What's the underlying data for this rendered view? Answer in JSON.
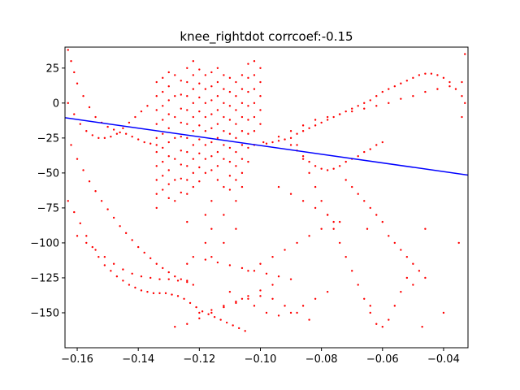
{
  "chart_data": {
    "type": "scatter",
    "title": "knee_rightdot corrcoef:-0.15",
    "xlabel": "",
    "ylabel": "",
    "xlim": [
      -0.164,
      -0.032
    ],
    "ylim": [
      -175,
      40
    ],
    "x_ticks": [
      -0.16,
      -0.14,
      -0.12,
      -0.1,
      -0.08,
      -0.06,
      -0.04
    ],
    "x_tick_labels": [
      "−0.16",
      "−0.14",
      "−0.12",
      "−0.10",
      "−0.08",
      "−0.06",
      "−0.04"
    ],
    "y_ticks": [
      25,
      0,
      -25,
      -50,
      -75,
      -100,
      -125,
      -150
    ],
    "y_tick_labels": [
      "25",
      "0",
      "−25",
      "−50",
      "−75",
      "−100",
      "−125",
      "−150"
    ],
    "grid": false,
    "colors": {
      "points": "#ff0000",
      "fit_line": "#0000ff"
    },
    "fit_line": {
      "x": [
        -0.164,
        -0.032
      ],
      "y": [
        -10.5,
        -51.5
      ]
    },
    "series": [
      {
        "x": [
          -0.163,
          -0.162,
          -0.161,
          -0.16,
          -0.158,
          -0.156,
          -0.154,
          -0.152,
          -0.15,
          -0.148,
          -0.146,
          -0.144,
          -0.142,
          -0.14,
          -0.138,
          -0.136,
          -0.134,
          -0.163,
          -0.161,
          -0.159,
          -0.157,
          -0.155,
          -0.153,
          -0.151,
          -0.149,
          -0.147,
          -0.145,
          -0.143,
          -0.141,
          -0.139,
          -0.137,
          -0.135,
          -0.133,
          -0.131,
          -0.129,
          -0.127,
          -0.125,
          -0.123,
          -0.121,
          -0.119,
          -0.117,
          -0.115,
          -0.113,
          -0.111,
          -0.109,
          -0.107,
          -0.105,
          -0.162,
          -0.16,
          -0.158,
          -0.156,
          -0.154,
          -0.152,
          -0.15,
          -0.148,
          -0.146,
          -0.144,
          -0.142,
          -0.14,
          -0.138,
          -0.136,
          -0.134,
          -0.132,
          -0.13,
          -0.128,
          -0.126,
          -0.124,
          -0.122,
          -0.16,
          -0.157,
          -0.154,
          -0.151,
          -0.148,
          -0.145,
          -0.142,
          -0.139,
          -0.136,
          -0.133,
          -0.13,
          -0.127,
          -0.124,
          -0.163,
          -0.161,
          -0.159,
          -0.157,
          -0.155,
          -0.153,
          -0.151,
          -0.149,
          -0.147,
          -0.145,
          -0.143,
          -0.141,
          -0.139,
          -0.137,
          -0.134,
          -0.134,
          -0.134,
          -0.134,
          -0.134,
          -0.134,
          -0.134,
          -0.134,
          -0.134,
          -0.134,
          -0.132,
          -0.132,
          -0.132,
          -0.132,
          -0.132,
          -0.132,
          -0.132,
          -0.132,
          -0.132,
          -0.13,
          -0.13,
          -0.13,
          -0.13,
          -0.13,
          -0.13,
          -0.13,
          -0.13,
          -0.13,
          -0.13,
          -0.128,
          -0.128,
          -0.128,
          -0.128,
          -0.128,
          -0.128,
          -0.128,
          -0.126,
          -0.126,
          -0.126,
          -0.126,
          -0.126,
          -0.126,
          -0.126,
          -0.126,
          -0.126,
          -0.124,
          -0.124,
          -0.124,
          -0.124,
          -0.124,
          -0.124,
          -0.124,
          -0.124,
          -0.124,
          -0.124,
          -0.124,
          -0.124,
          -0.122,
          -0.122,
          -0.122,
          -0.122,
          -0.122,
          -0.122,
          -0.122,
          -0.122,
          -0.122,
          -0.122,
          -0.12,
          -0.12,
          -0.12,
          -0.12,
          -0.12,
          -0.12,
          -0.12,
          -0.12,
          -0.12,
          -0.118,
          -0.118,
          -0.118,
          -0.118,
          -0.118,
          -0.118,
          -0.118,
          -0.118,
          -0.118,
          -0.118,
          -0.116,
          -0.116,
          -0.116,
          -0.116,
          -0.116,
          -0.116,
          -0.116,
          -0.116,
          -0.116,
          -0.116,
          -0.116,
          -0.114,
          -0.114,
          -0.114,
          -0.114,
          -0.114,
          -0.114,
          -0.114,
          -0.114,
          -0.114,
          -0.112,
          -0.112,
          -0.112,
          -0.112,
          -0.112,
          -0.112,
          -0.112,
          -0.112,
          -0.112,
          -0.112,
          -0.11,
          -0.11,
          -0.11,
          -0.11,
          -0.11,
          -0.11,
          -0.11,
          -0.11,
          -0.11,
          -0.108,
          -0.108,
          -0.108,
          -0.108,
          -0.108,
          -0.108,
          -0.108,
          -0.108,
          -0.108,
          -0.108,
          -0.106,
          -0.106,
          -0.106,
          -0.106,
          -0.106,
          -0.106,
          -0.106,
          -0.106,
          -0.106,
          -0.104,
          -0.104,
          -0.104,
          -0.104,
          -0.104,
          -0.104,
          -0.104,
          -0.104,
          -0.102,
          -0.102,
          -0.102,
          -0.102,
          -0.102,
          -0.102,
          -0.102,
          -0.1,
          -0.1,
          -0.1,
          -0.1,
          -0.1,
          -0.099,
          -0.098,
          -0.096,
          -0.094,
          -0.092,
          -0.09,
          -0.088,
          -0.086,
          -0.084,
          -0.082,
          -0.08,
          -0.078,
          -0.076,
          -0.074,
          -0.072,
          -0.07,
          -0.068,
          -0.066,
          -0.064,
          -0.062,
          -0.06,
          -0.058,
          -0.056,
          -0.054,
          -0.052,
          -0.05,
          -0.048,
          -0.046,
          -0.044,
          -0.042,
          -0.04,
          -0.038,
          -0.036,
          -0.034,
          -0.033,
          -0.094,
          -0.09,
          -0.086,
          -0.082,
          -0.078,
          -0.074,
          -0.07,
          -0.066,
          -0.062,
          -0.058,
          -0.054,
          -0.05,
          -0.046,
          -0.042,
          -0.038,
          -0.034,
          -0.088,
          -0.086,
          -0.084,
          -0.082,
          -0.08,
          -0.078,
          -0.076,
          -0.074,
          -0.072,
          -0.07,
          -0.068,
          -0.066,
          -0.064,
          -0.062,
          -0.06,
          -0.058,
          -0.056,
          -0.054,
          -0.052,
          -0.09,
          -0.088,
          -0.086,
          -0.084,
          -0.082,
          -0.08,
          -0.078,
          -0.076,
          -0.074,
          -0.072,
          -0.07,
          -0.068,
          -0.066,
          -0.064,
          -0.062,
          -0.06,
          -0.104,
          -0.1,
          -0.096,
          -0.092,
          -0.088,
          -0.084,
          -0.08,
          -0.076,
          -0.11,
          -0.106,
          -0.102,
          -0.098,
          -0.094,
          -0.09,
          -0.086,
          -0.082,
          -0.078,
          -0.12,
          -0.116,
          -0.112,
          -0.108,
          -0.104,
          -0.1,
          -0.096,
          -0.092,
          -0.088,
          -0.084,
          -0.128,
          -0.124,
          -0.12,
          -0.116,
          -0.112,
          -0.108,
          -0.104,
          -0.1,
          -0.096,
          -0.122,
          -0.118,
          -0.114,
          -0.11,
          -0.106,
          -0.102,
          -0.098,
          -0.094,
          -0.09,
          -0.094,
          -0.09,
          -0.086,
          -0.082,
          -0.078,
          -0.074,
          -0.072,
          -0.07,
          -0.068,
          -0.066,
          -0.064,
          -0.062,
          -0.06,
          -0.058,
          -0.056,
          -0.054,
          -0.052,
          -0.05,
          -0.048,
          -0.046,
          -0.065,
          -0.05,
          -0.047,
          -0.034,
          -0.033,
          -0.064,
          -0.046,
          -0.04,
          -0.035
        ],
        "y": [
          38,
          30,
          22,
          14,
          5,
          -3,
          -10,
          -14,
          -17,
          -19,
          -21,
          -22,
          -24,
          -26,
          -28,
          -29,
          -30,
          -70,
          -78,
          -86,
          -95,
          -103,
          -110,
          -116,
          -120,
          -124,
          -127,
          -130,
          -132,
          -134,
          -135,
          -136,
          -136,
          -136,
          -137,
          -138,
          -140,
          -143,
          -146,
          -149,
          -151,
          -153,
          -155,
          -157,
          -159,
          -161,
          -163,
          -30,
          -40,
          -48,
          -56,
          -63,
          -70,
          -76,
          -82,
          -88,
          -93,
          -98,
          -103,
          -107,
          -111,
          -115,
          -118,
          -121,
          -124,
          -126,
          -128,
          -130,
          -95,
          -100,
          -105,
          -110,
          -115,
          -119,
          -122,
          -124,
          -125,
          -126,
          -126,
          -127,
          -127,
          0,
          -8,
          -15,
          -20,
          -23,
          -25,
          -25,
          -24,
          -22,
          -18,
          -14,
          -10,
          -6,
          -2,
          15,
          5,
          -5,
          -15,
          -25,
          -35,
          -45,
          -55,
          -65,
          -75,
          18,
          8,
          -2,
          -12,
          -22,
          -32,
          -42,
          -52,
          -62,
          22,
          12,
          2,
          -8,
          -18,
          -28,
          -38,
          -48,
          -58,
          -68,
          20,
          5,
          -10,
          -25,
          -40,
          -55,
          -70,
          16,
          6,
          -4,
          -14,
          -24,
          -34,
          -44,
          -54,
          -64,
          25,
          15,
          5,
          -5,
          -15,
          -25,
          -35,
          -45,
          -55,
          -65,
          -85,
          -115,
          30,
          20,
          10,
          0,
          -10,
          -20,
          -30,
          -40,
          -50,
          -60,
          24,
          14,
          4,
          -6,
          -16,
          -26,
          -36,
          -46,
          -56,
          20,
          10,
          0,
          -10,
          -20,
          -30,
          -40,
          -50,
          -80,
          -100,
          22,
          12,
          2,
          -8,
          -18,
          -28,
          -38,
          -48,
          -70,
          -90,
          -110,
          25,
          15,
          5,
          -5,
          -15,
          -25,
          -35,
          -45,
          -55,
          20,
          10,
          0,
          -10,
          -20,
          -30,
          -40,
          -60,
          -80,
          -100,
          18,
          8,
          -2,
          -12,
          -22,
          -32,
          -42,
          -52,
          -62,
          15,
          5,
          -5,
          -15,
          -25,
          -35,
          -45,
          -55,
          -70,
          -90,
          20,
          10,
          0,
          -10,
          -20,
          -30,
          -40,
          -50,
          -60,
          28,
          18,
          8,
          -2,
          -12,
          -22,
          -32,
          -42,
          30,
          20,
          10,
          0,
          -10,
          -20,
          -30,
          25,
          15,
          5,
          -5,
          -15,
          -28,
          -29,
          -28,
          -27,
          -26,
          -25,
          -22,
          -20,
          -18,
          -16,
          -14,
          -12,
          -10,
          -8,
          -6,
          -4,
          -2,
          0,
          2,
          5,
          8,
          10,
          12,
          14,
          16,
          18,
          20,
          21,
          21,
          20,
          18,
          15,
          10,
          5,
          0,
          -24,
          -20,
          -16,
          -12,
          -10,
          -8,
          -6,
          -4,
          -2,
          0,
          3,
          5,
          8,
          10,
          12,
          15,
          -30,
          -40,
          -50,
          -60,
          -70,
          -80,
          -90,
          -100,
          -110,
          -120,
          -130,
          -140,
          -150,
          -158,
          -160,
          -155,
          -145,
          -135,
          -125,
          -30,
          -34,
          -38,
          -42,
          -45,
          -47,
          -48,
          -47,
          -45,
          -42,
          -40,
          -38,
          -35,
          -33,
          -30,
          -28,
          -120,
          -115,
          -110,
          -105,
          -100,
          -95,
          -90,
          -85,
          -135,
          -140,
          -145,
          -150,
          -152,
          -150,
          -145,
          -140,
          -135,
          -150,
          -148,
          -145,
          -143,
          -140,
          -138,
          -140,
          -145,
          -150,
          -155,
          -160,
          -158,
          -154,
          -150,
          -146,
          -142,
          -138,
          -134,
          -130,
          -110,
          -112,
          -114,
          -116,
          -118,
          -120,
          -122,
          -124,
          -126,
          -60,
          -65,
          -70,
          -75,
          -80,
          -85,
          -55,
          -60,
          -65,
          -70,
          -75,
          -80,
          -85,
          -95,
          -100,
          -105,
          -110,
          -115,
          -120,
          -125,
          -90,
          -130,
          -160,
          -10,
          35,
          -145,
          -90,
          -150,
          -100
        ]
      }
    ]
  }
}
